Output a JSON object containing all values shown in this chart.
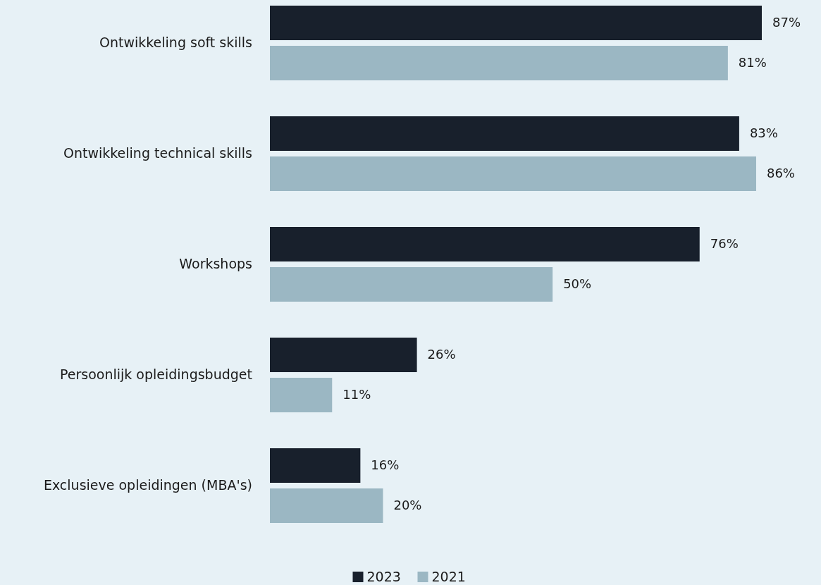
{
  "chart_data": {
    "type": "bar",
    "orientation": "horizontal",
    "categories": [
      "Ontwikkeling soft skills",
      "Ontwikkeling technical skills",
      "Workshops",
      "Persoonlijk opleidingsbudget",
      "Exclusieve opleidingen (MBA's)"
    ],
    "series": [
      {
        "name": "2023",
        "color": "#18202c",
        "values": [
          87,
          83,
          76,
          26,
          16
        ],
        "value_labels": [
          "87%",
          "83%",
          "76%",
          "26%",
          "16%"
        ]
      },
      {
        "name": "2021",
        "color": "#9bb7c3",
        "values": [
          81,
          86,
          50,
          11,
          20
        ],
        "value_labels": [
          "81%",
          "86%",
          "50%",
          "11%",
          "20%"
        ]
      }
    ],
    "legend": "bottom"
  }
}
